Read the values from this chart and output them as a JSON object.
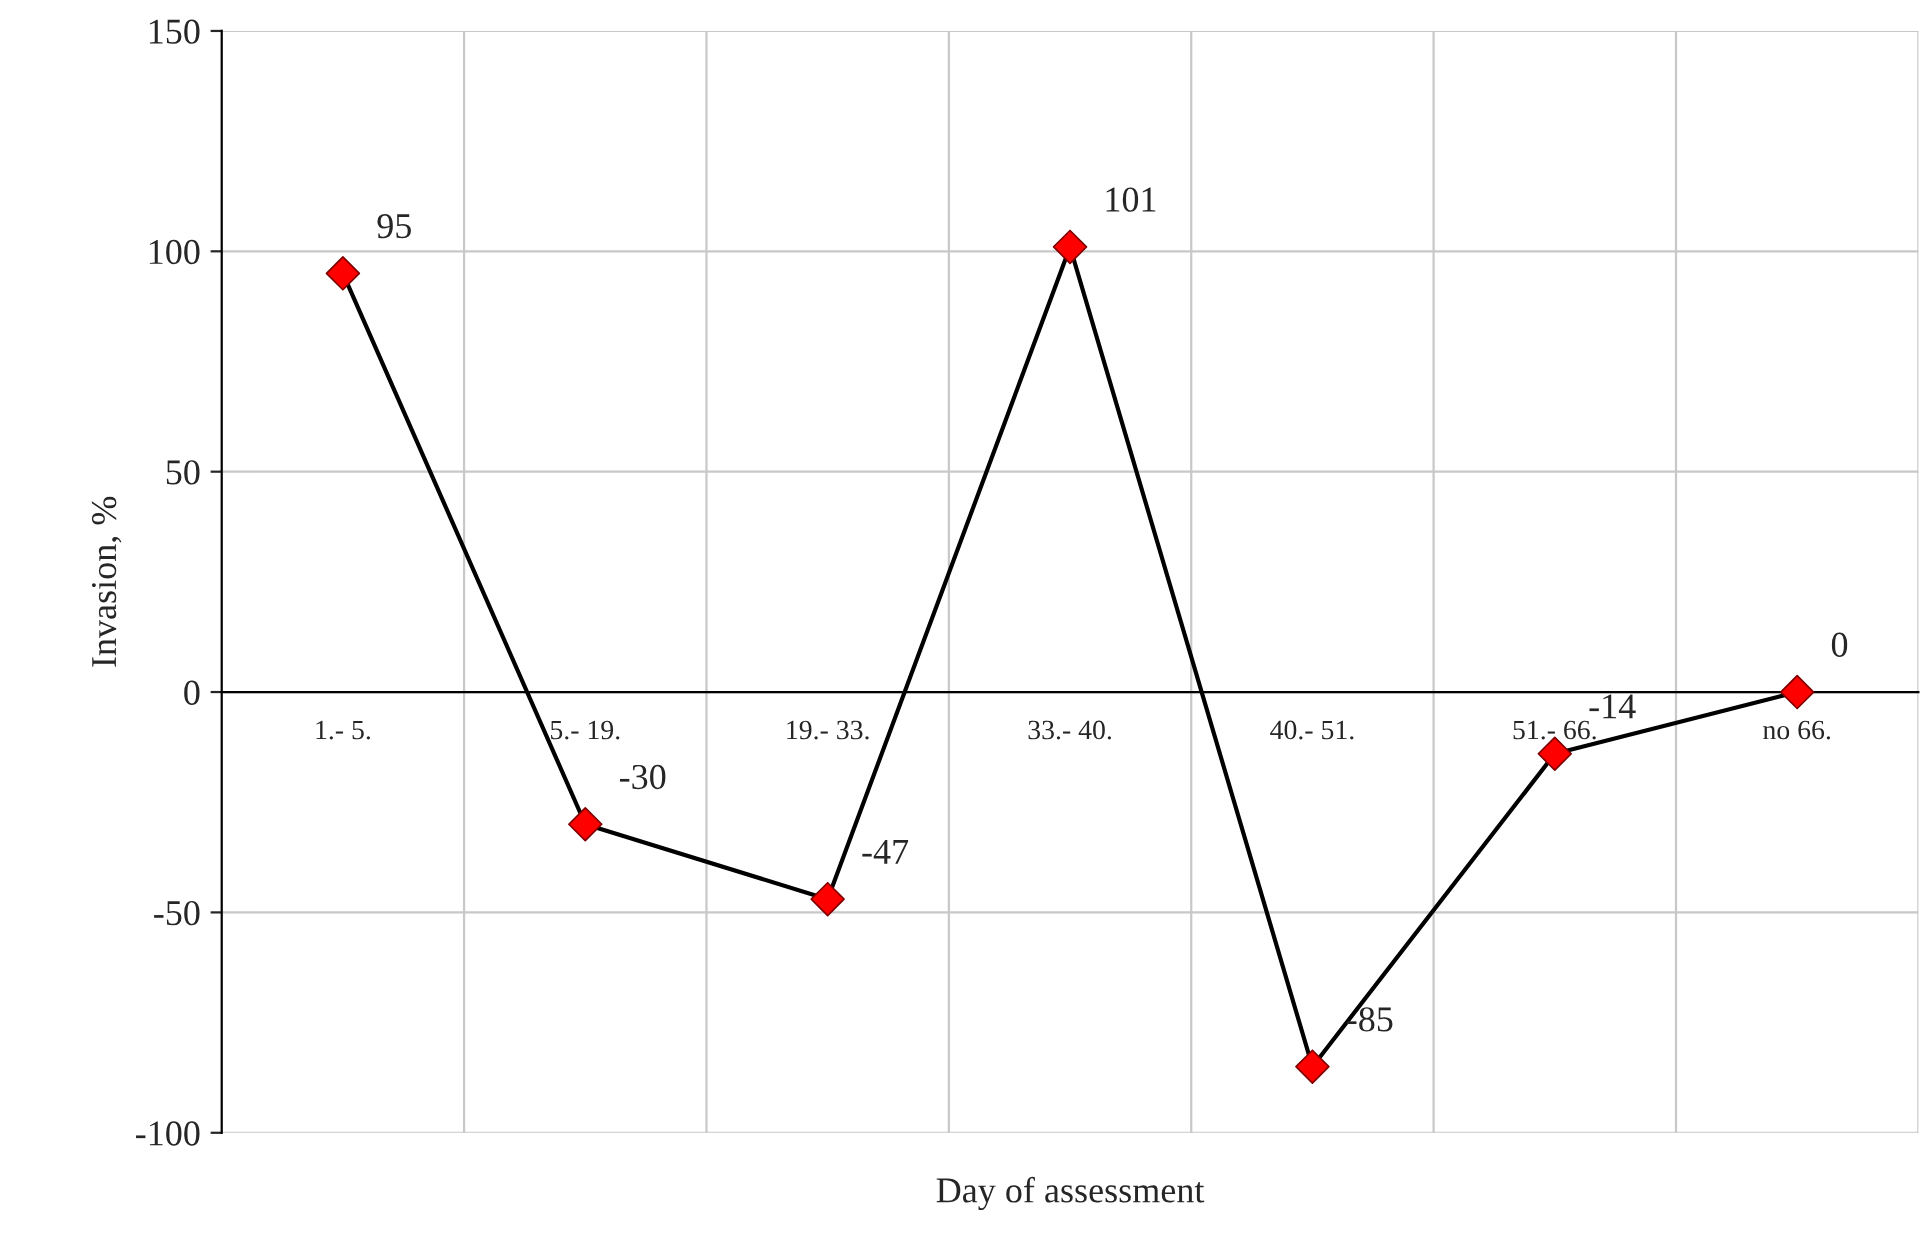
{
  "chart_data": {
    "type": "line",
    "xlabel": "Day of assessment",
    "ylabel": "Invasion, %",
    "categories": [
      "1.- 5.",
      "5.- 19.",
      "19.- 33.",
      "33.- 40.",
      "40.- 51.",
      "51.- 66.",
      "no 66."
    ],
    "series": [
      {
        "color": "#ff0000",
        "values": [
          95,
          -30,
          -47,
          101,
          -85,
          -14,
          0
        ]
      }
    ],
    "ylim": [
      -100,
      150
    ],
    "yticks": [
      -100,
      -50,
      0,
      50,
      100,
      150
    ],
    "grid": true,
    "marker": "diamond",
    "line_style": "solid",
    "data_labels": true
  }
}
